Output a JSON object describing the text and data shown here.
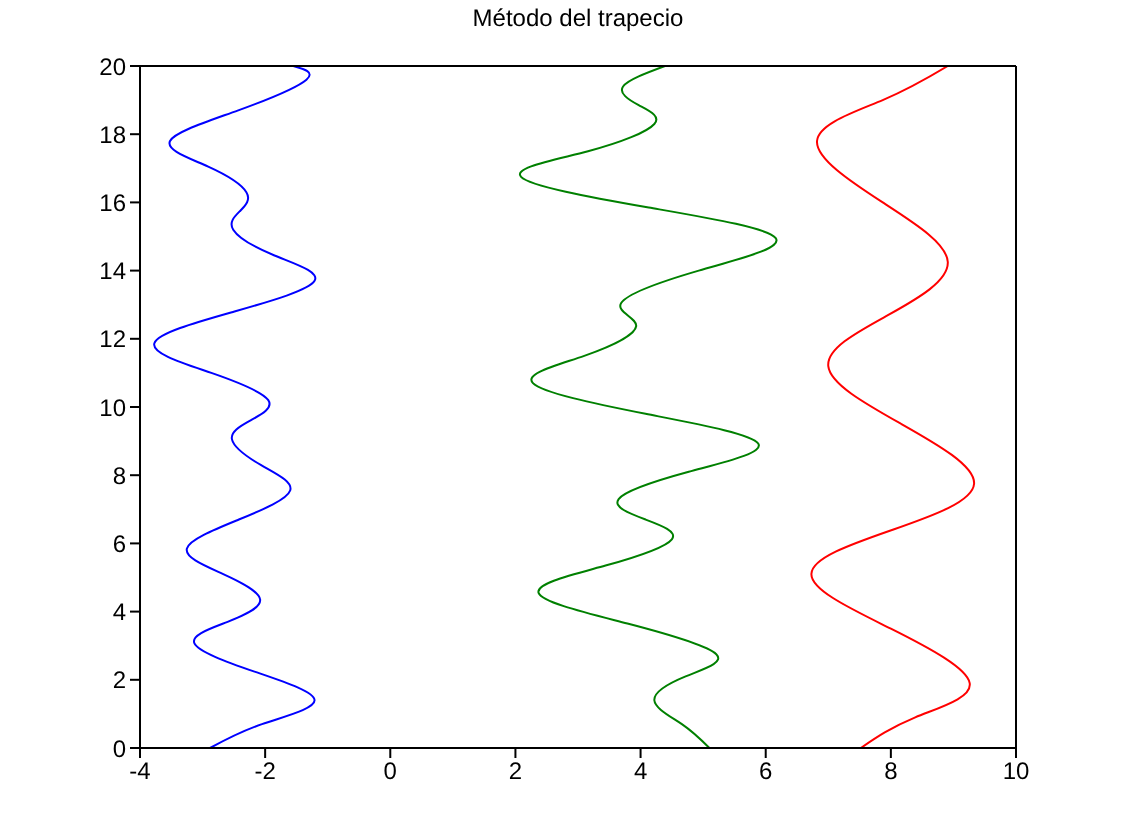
{
  "chart_data": {
    "type": "line",
    "title": "Método del trapecio",
    "xlim": [
      -4,
      10
    ],
    "xticks": [
      -4,
      -2,
      0,
      2,
      4,
      6,
      8,
      10
    ],
    "ylim": [
      0,
      20
    ],
    "yticks": [
      0,
      2,
      4,
      6,
      8,
      10,
      12,
      14,
      16,
      18,
      20
    ],
    "grid": false,
    "marker": "none",
    "line_style": "solid",
    "series": [
      {
        "color": "#0000ff",
        "x": [
          -2.88,
          -2.05,
          -1.21,
          -2.17,
          -3.13,
          -2.6,
          -2.08,
          -2.67,
          -3.25,
          -2.42,
          -1.6,
          -2.07,
          -2.53,
          -2.24,
          -1.95,
          -2.86,
          -3.77,
          -2.49,
          -1.21,
          -1.86,
          -2.51,
          -2.4,
          -2.3,
          -2.91,
          -3.52,
          -2.43,
          -1.34,
          -1.55
        ],
        "values": [
          0,
          0.7,
          1.4,
          2.24,
          3.07,
          3.7,
          4.35,
          5.1,
          5.85,
          6.7,
          7.55,
          8.3,
          9.05,
          9.6,
          10.2,
          11.0,
          11.87,
          12.8,
          13.7,
          14.45,
          15.2,
          15.75,
          16.3,
          17.05,
          17.8,
          18.7,
          19.6,
          20
        ]
      },
      {
        "color": "#008000",
        "x": [
          5.1,
          4.66,
          4.22,
          4.72,
          5.21,
          3.79,
          2.37,
          3.44,
          4.5,
          4.08,
          3.65,
          4.77,
          5.88,
          4.08,
          2.28,
          3.1,
          3.93,
          3.69,
          4.93,
          6.16,
          4.13,
          2.09,
          3.16,
          4.22,
          3.97,
          3.72,
          4.39
        ],
        "values": [
          0,
          0.7,
          1.4,
          2.1,
          2.75,
          3.65,
          4.55,
          5.35,
          6.12,
          6.7,
          7.3,
          8.1,
          8.93,
          9.8,
          10.7,
          11.5,
          12.37,
          13.05,
          14.0,
          14.95,
          15.85,
          16.75,
          17.5,
          18.3,
          18.85,
          19.4,
          20
        ]
      },
      {
        "color": "#ff0000",
        "x": [
          7.52,
          8.39,
          9.26,
          8.0,
          6.73,
          8.03,
          9.33,
          8.17,
          7.0,
          7.96,
          8.91,
          7.87,
          6.82,
          7.87,
          8.91
        ],
        "values": [
          0,
          0.9,
          1.9,
          3.5,
          5.1,
          6.4,
          7.75,
          9.5,
          11.2,
          12.7,
          14.25,
          16.0,
          17.8,
          19.0,
          20
        ]
      }
    ]
  }
}
